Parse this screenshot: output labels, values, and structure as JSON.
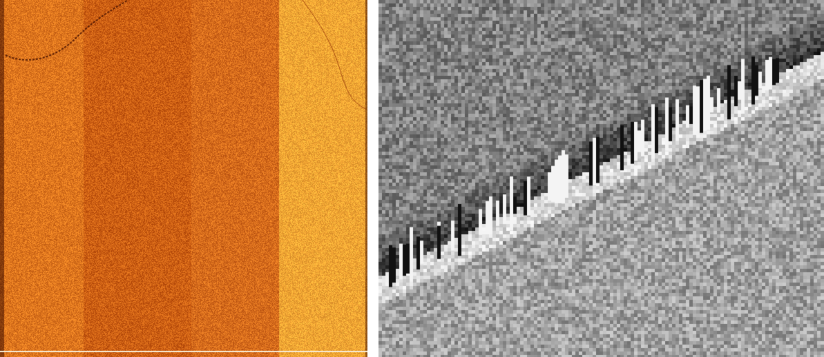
{
  "left_panel": {
    "description_colors": {
      "base": "#e07a1f",
      "dark_band": "#c95e10",
      "light_band": "#f3a53a",
      "edge": "#8a2e05"
    },
    "band_splits": [
      0.52,
      0.76
    ]
  },
  "right_panel": {
    "colors": {
      "mid": "#8c8c8c",
      "light": "#f2f2f2",
      "dark": "#202020"
    }
  }
}
